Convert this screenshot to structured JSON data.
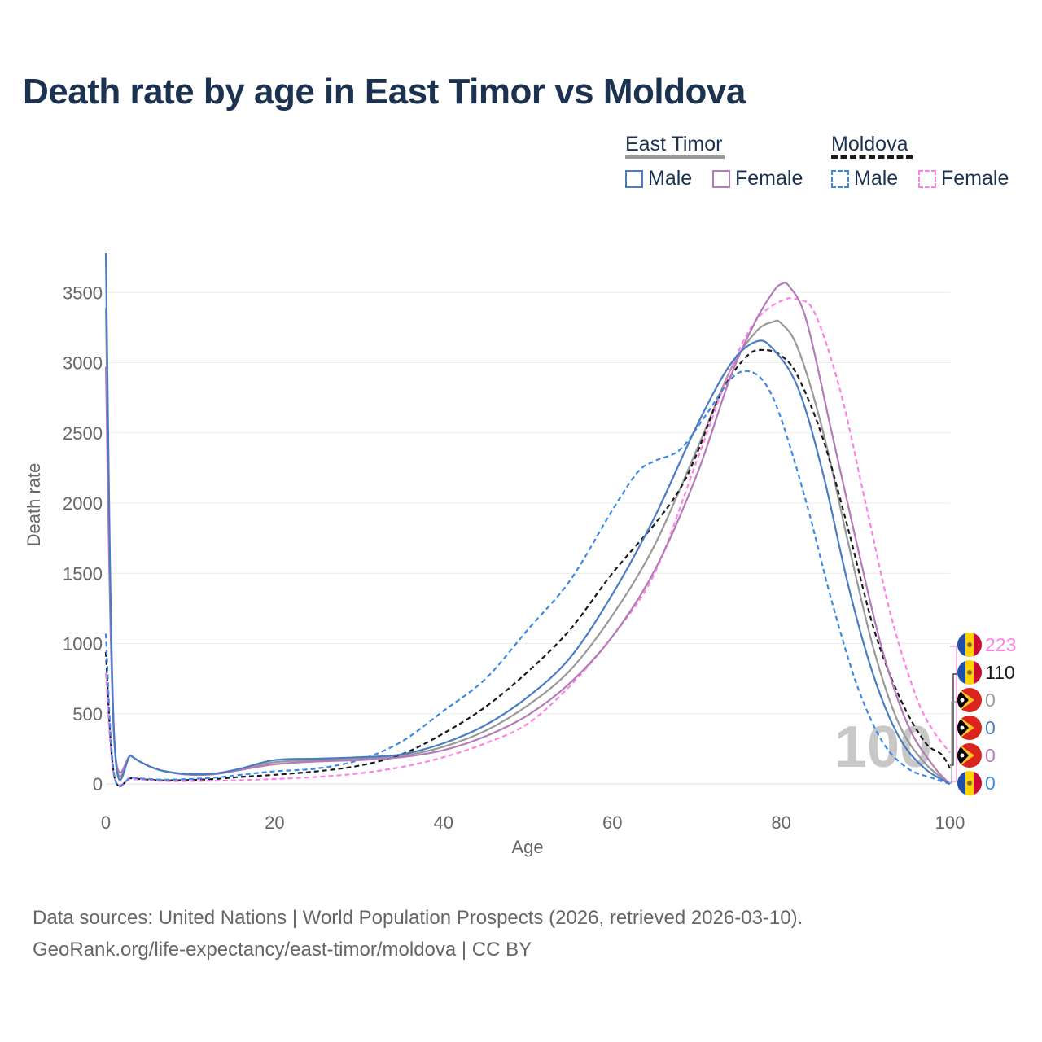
{
  "title": "Death rate by age in East Timor vs Moldova",
  "legend": {
    "groups": [
      {
        "name": "East Timor",
        "style": "solid",
        "items": [
          {
            "label": "Male",
            "color": "#4a7cc4"
          },
          {
            "label": "Female",
            "color": "#b57ab8"
          }
        ]
      },
      {
        "name": "Moldova",
        "style": "dashed",
        "items": [
          {
            "label": "Male",
            "color": "#3b8ae6"
          },
          {
            "label": "Female",
            "color": "#ff80e8"
          }
        ]
      }
    ]
  },
  "chart_data": {
    "type": "line",
    "title": "Death rate by age in East Timor vs Moldova",
    "xlabel": "Age",
    "ylabel": "Death rate",
    "xlim": [
      0,
      100
    ],
    "ylim": [
      0,
      3800
    ],
    "xticks": [
      0,
      20,
      40,
      60,
      80,
      100
    ],
    "yticks": [
      0,
      500,
      1000,
      1500,
      2000,
      2500,
      3000,
      3500
    ],
    "grid": true,
    "current_age_label": "100",
    "series": [
      {
        "name": "East Timor Male",
        "country": "East Timor",
        "sex": "Male",
        "color": "#4a7cc4",
        "dash": false,
        "end_label": "0",
        "x": [
          0,
          1,
          3,
          5,
          7,
          10,
          13,
          16,
          20,
          25,
          30,
          35,
          40,
          45,
          50,
          55,
          60,
          65,
          70,
          74,
          77,
          79,
          82,
          85,
          88,
          91,
          94,
          97,
          100
        ],
        "y": [
          3780,
          320,
          200,
          130,
          90,
          70,
          75,
          110,
          170,
          180,
          190,
          210,
          290,
          420,
          620,
          900,
          1350,
          1900,
          2550,
          2990,
          3150,
          3100,
          2820,
          2200,
          1400,
          760,
          330,
          110,
          0
        ]
      },
      {
        "name": "East Timor Female",
        "country": "East Timor",
        "sex": "Female",
        "color": "#b57ab8",
        "dash": false,
        "end_label": "0",
        "x": [
          0,
          1,
          3,
          5,
          7,
          10,
          13,
          16,
          20,
          25,
          30,
          35,
          40,
          45,
          50,
          55,
          60,
          65,
          70,
          74,
          77,
          79,
          80,
          81,
          83,
          86,
          89,
          92,
          95,
          98,
          100
        ],
        "y": [
          2970,
          310,
          200,
          130,
          90,
          65,
          70,
          100,
          140,
          160,
          170,
          190,
          240,
          340,
          490,
          720,
          1050,
          1520,
          2200,
          2900,
          3300,
          3500,
          3560,
          3540,
          3300,
          2500,
          1700,
          950,
          420,
          130,
          0
        ]
      },
      {
        "name": "Moldova Male",
        "country": "Moldova",
        "sex": "Male",
        "color": "#3b8ae6",
        "dash": true,
        "end_label": "0",
        "x": [
          0,
          1,
          3,
          5,
          7,
          10,
          13,
          16,
          20,
          25,
          30,
          35,
          40,
          45,
          50,
          55,
          60,
          63,
          65,
          68,
          71,
          74,
          76,
          78,
          80,
          83,
          86,
          89,
          92,
          95,
          98,
          100
        ],
        "y": [
          1070,
          60,
          45,
          35,
          30,
          35,
          45,
          65,
          90,
          110,
          170,
          300,
          520,
          750,
          1100,
          1450,
          1950,
          2220,
          2300,
          2380,
          2620,
          2880,
          2940,
          2860,
          2600,
          2000,
          1300,
          700,
          300,
          110,
          40,
          0
        ]
      },
      {
        "name": "Moldova Female",
        "country": "Moldova",
        "sex": "Female",
        "color": "#ff80e8",
        "dash": true,
        "end_label": "223",
        "x": [
          0,
          1,
          3,
          5,
          7,
          10,
          15,
          20,
          25,
          30,
          35,
          40,
          45,
          50,
          55,
          60,
          65,
          70,
          74,
          77,
          80,
          82,
          84,
          87,
          90,
          93,
          96,
          98,
          100
        ],
        "y": [
          790,
          50,
          35,
          25,
          20,
          20,
          25,
          35,
          50,
          75,
          120,
          190,
          290,
          430,
          700,
          1050,
          1500,
          2300,
          2950,
          3300,
          3440,
          3450,
          3350,
          2800,
          2000,
          1200,
          620,
          380,
          223
        ]
      },
      {
        "name": "Total",
        "country": "",
        "sex": "Total",
        "color": "#999999",
        "dash": false,
        "end_label": "0",
        "x": [
          0,
          1,
          3,
          5,
          7,
          10,
          13,
          16,
          20,
          25,
          30,
          35,
          40,
          45,
          50,
          55,
          60,
          65,
          70,
          74,
          77,
          79,
          80,
          82,
          85,
          88,
          91,
          94,
          97,
          100
        ],
        "y": [
          3390,
          315,
          200,
          130,
          90,
          67,
          72,
          105,
          155,
          170,
          180,
          200,
          265,
          380,
          560,
          810,
          1200,
          1700,
          2380,
          2950,
          3220,
          3290,
          3280,
          3100,
          2500,
          1700,
          950,
          420,
          150,
          0
        ]
      },
      {
        "name": "Moldova Total",
        "country": "Moldova",
        "sex": "Total",
        "color": "#1a1a1a",
        "dash": true,
        "end_label": "110",
        "x": [
          0,
          1,
          3,
          5,
          7,
          10,
          13,
          16,
          20,
          25,
          30,
          35,
          40,
          45,
          50,
          55,
          60,
          65,
          68,
          70,
          73,
          76,
          78,
          80,
          82,
          85,
          88,
          91,
          94,
          97,
          99,
          100
        ],
        "y": [
          940,
          55,
          40,
          30,
          25,
          28,
          35,
          50,
          65,
          90,
          130,
          210,
          360,
          550,
          800,
          1100,
          1500,
          1850,
          2100,
          2350,
          2800,
          3050,
          3090,
          3050,
          2900,
          2450,
          1800,
          1100,
          620,
          300,
          210,
          110
        ]
      }
    ]
  },
  "source": {
    "line1": "Data sources: United Nations | World Population Prospects (2026, retrieved 2026-03-10).",
    "line2": "GeoRank.org/life-expectancy/east-timor/moldova | CC BY"
  }
}
